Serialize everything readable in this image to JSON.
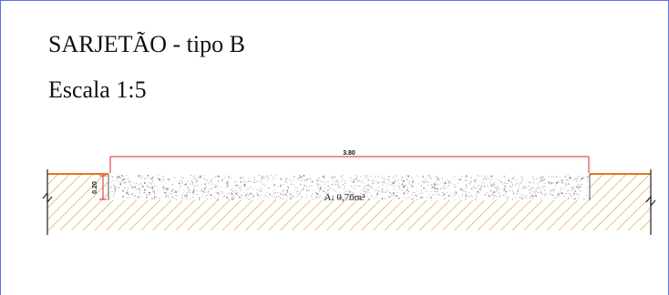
{
  "drawing": {
    "title": "SARJETÃO - tipo B",
    "scale": "Escala 1:5",
    "width_dimension": "3.80",
    "depth_dimension": "0.20",
    "area_label": "A: 0,76m²"
  },
  "colors": {
    "frame": "#5b6fe6",
    "dimension": "#e0202a",
    "ground": "#e07a1c",
    "hatch": "#d9a640",
    "concrete": "#7a7a7a",
    "text": "#111111"
  }
}
